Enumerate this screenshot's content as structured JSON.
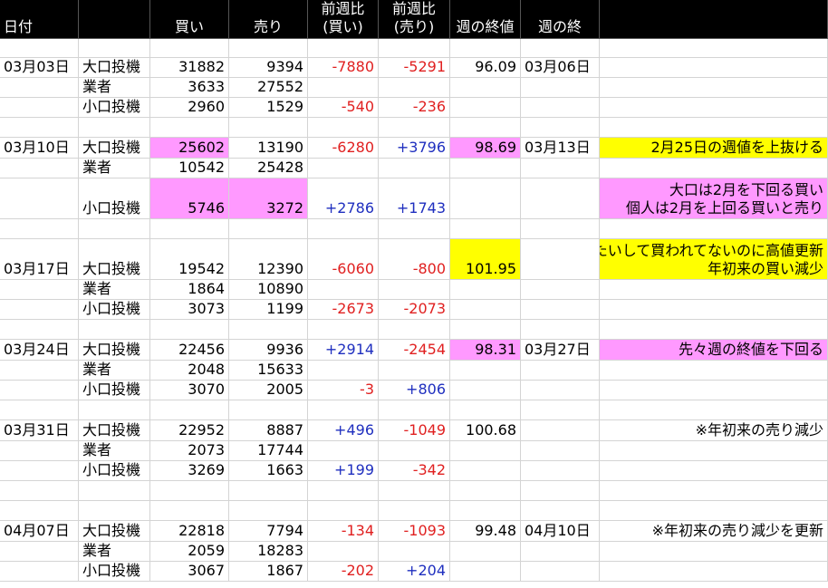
{
  "header": [
    "日付",
    "",
    "買い",
    "売り",
    "前週比\n(買い)",
    "前週比\n(売り)",
    "週の終値",
    "週の終",
    ""
  ],
  "column_colors": {
    "red": "#e02020",
    "blue": "#1f2fbf",
    "pink": "#ff99ff",
    "yellow": "#ffff00",
    "alert": "#ff3333"
  },
  "rows": [
    {
      "h": 21,
      "cells": []
    },
    {
      "h": 22,
      "cells": [
        {
          "c": 0,
          "t": "03月03日"
        },
        {
          "c": 1,
          "t": "大口投機"
        },
        {
          "c": 2,
          "t": "31882"
        },
        {
          "c": 3,
          "t": "9394"
        },
        {
          "c": 4,
          "t": "-7880",
          "fg": "red"
        },
        {
          "c": 5,
          "t": "-5291",
          "fg": "red"
        },
        {
          "c": 6,
          "t": "96.09"
        },
        {
          "c": 7,
          "t": "03月06日"
        }
      ]
    },
    {
      "h": 22,
      "cells": [
        {
          "c": 1,
          "t": "業者"
        },
        {
          "c": 2,
          "t": "3633"
        },
        {
          "c": 3,
          "t": "27552"
        }
      ]
    },
    {
      "h": 22,
      "cells": [
        {
          "c": 1,
          "t": "小口投機"
        },
        {
          "c": 2,
          "t": "2960"
        },
        {
          "c": 3,
          "t": "1529"
        },
        {
          "c": 4,
          "t": "-540",
          "fg": "red"
        },
        {
          "c": 5,
          "t": "-236",
          "fg": "red"
        }
      ]
    },
    {
      "h": 22,
      "cells": []
    },
    {
      "h": 23,
      "cells": [
        {
          "c": 0,
          "t": "03月10日"
        },
        {
          "c": 1,
          "t": "大口投機"
        },
        {
          "c": 2,
          "t": "25602",
          "bg": "pink"
        },
        {
          "c": 3,
          "t": "13190"
        },
        {
          "c": 4,
          "t": "-6280",
          "fg": "red"
        },
        {
          "c": 5,
          "t": "+3796",
          "fg": "blue"
        },
        {
          "c": 6,
          "t": "98.69",
          "bg": "pink"
        },
        {
          "c": 7,
          "t": "03月13日"
        },
        {
          "c": 8,
          "t": "2月25日の週値を上抜ける",
          "bg": "yellow"
        }
      ]
    },
    {
      "h": 22,
      "cells": [
        {
          "c": 1,
          "t": "業者"
        },
        {
          "c": 2,
          "t": "10542"
        },
        {
          "c": 3,
          "t": "25428"
        }
      ]
    },
    {
      "h": 45,
      "cells": [
        {
          "c": 1,
          "t": "小口投機"
        },
        {
          "c": 2,
          "t": "5746",
          "bg": "pink"
        },
        {
          "c": 3,
          "t": "3272",
          "bg": "pink"
        },
        {
          "c": 4,
          "t": "+2786",
          "fg": "blue"
        },
        {
          "c": 5,
          "t": "+1743",
          "fg": "blue"
        },
        {
          "c": 8,
          "t": "大口は2月を下回る買い\n個人は2月を上回る買いと売り",
          "bg": "pink"
        }
      ]
    },
    {
      "h": 22,
      "cells": []
    },
    {
      "h": 45,
      "cells": [
        {
          "c": 0,
          "t": "03月17日"
        },
        {
          "c": 1,
          "t": "大口投機"
        },
        {
          "c": 2,
          "t": "19542"
        },
        {
          "c": 3,
          "t": "12390"
        },
        {
          "c": 4,
          "t": "-6060",
          "fg": "red"
        },
        {
          "c": 5,
          "t": "-800",
          "fg": "red"
        },
        {
          "c": 6,
          "t": "101.95",
          "bg": "yellow"
        },
        {
          "c": 8,
          "t": "たいして買われてないのに高値更新\n年初来の買い減少",
          "bg": "yellow"
        }
      ]
    },
    {
      "h": 22,
      "cells": [
        {
          "c": 1,
          "t": "業者"
        },
        {
          "c": 2,
          "t": "1864"
        },
        {
          "c": 3,
          "t": "10890"
        }
      ]
    },
    {
      "h": 22,
      "cells": [
        {
          "c": 1,
          "t": "小口投機"
        },
        {
          "c": 2,
          "t": "3073"
        },
        {
          "c": 3,
          "t": "1199"
        },
        {
          "c": 4,
          "t": "-2673",
          "fg": "red"
        },
        {
          "c": 5,
          "t": "-2073",
          "fg": "red"
        }
      ]
    },
    {
      "h": 22,
      "cells": []
    },
    {
      "h": 23,
      "cells": [
        {
          "c": 0,
          "t": "03月24日"
        },
        {
          "c": 1,
          "t": "大口投機"
        },
        {
          "c": 2,
          "t": "22456"
        },
        {
          "c": 3,
          "t": "9936"
        },
        {
          "c": 4,
          "t": "+2914",
          "fg": "blue"
        },
        {
          "c": 5,
          "t": "-2454",
          "fg": "red"
        },
        {
          "c": 6,
          "t": "98.31",
          "bg": "pink"
        },
        {
          "c": 7,
          "t": "03月27日"
        },
        {
          "c": 8,
          "t": "先々週の終値を下回る",
          "bg": "pink"
        }
      ]
    },
    {
      "h": 22,
      "cells": [
        {
          "c": 1,
          "t": "業者"
        },
        {
          "c": 2,
          "t": "2048"
        },
        {
          "c": 3,
          "t": "15633"
        }
      ]
    },
    {
      "h": 22,
      "cells": [
        {
          "c": 1,
          "t": "小口投機"
        },
        {
          "c": 2,
          "t": "3070"
        },
        {
          "c": 3,
          "t": "2005"
        },
        {
          "c": 4,
          "t": "-3",
          "fg": "red"
        },
        {
          "c": 5,
          "t": "+806",
          "fg": "blue"
        }
      ]
    },
    {
      "h": 22,
      "cells": []
    },
    {
      "h": 23,
      "cells": [
        {
          "c": 0,
          "t": "03月31日"
        },
        {
          "c": 1,
          "t": "大口投機"
        },
        {
          "c": 2,
          "t": "22952"
        },
        {
          "c": 3,
          "t": "8887",
          "bg": "alert"
        },
        {
          "c": 4,
          "t": "+496",
          "fg": "blue"
        },
        {
          "c": 5,
          "t": "-1049",
          "fg": "red"
        },
        {
          "c": 6,
          "t": "100.68"
        },
        {
          "c": 8,
          "t": "※年初来の売り減少",
          "bg": "alert"
        }
      ]
    },
    {
      "h": 22,
      "cells": [
        {
          "c": 1,
          "t": "業者"
        },
        {
          "c": 2,
          "t": "2073"
        },
        {
          "c": 3,
          "t": "17744"
        }
      ]
    },
    {
      "h": 22,
      "cells": [
        {
          "c": 1,
          "t": "小口投機"
        },
        {
          "c": 2,
          "t": "3269"
        },
        {
          "c": 3,
          "t": "1663"
        },
        {
          "c": 4,
          "t": "+199",
          "fg": "blue"
        },
        {
          "c": 5,
          "t": "-342",
          "fg": "red"
        }
      ]
    },
    {
      "h": 22,
      "cells": []
    },
    {
      "h": 22,
      "cells": []
    },
    {
      "h": 23,
      "cells": [
        {
          "c": 0,
          "t": "04月07日"
        },
        {
          "c": 1,
          "t": "大口投機"
        },
        {
          "c": 2,
          "t": "22818"
        },
        {
          "c": 3,
          "t": "7794",
          "bg": "alert"
        },
        {
          "c": 4,
          "t": "-134",
          "fg": "red"
        },
        {
          "c": 5,
          "t": "-1093",
          "fg": "red"
        },
        {
          "c": 6,
          "t": "99.48"
        },
        {
          "c": 7,
          "t": "04月10日"
        },
        {
          "c": 8,
          "t": "※年初来の売り減少を更新",
          "bg": "alert"
        }
      ]
    },
    {
      "h": 22,
      "cells": [
        {
          "c": 1,
          "t": "業者"
        },
        {
          "c": 2,
          "t": "2059"
        },
        {
          "c": 3,
          "t": "18283"
        }
      ]
    },
    {
      "h": 22,
      "cells": [
        {
          "c": 1,
          "t": "小口投機"
        },
        {
          "c": 2,
          "t": "3067"
        },
        {
          "c": 3,
          "t": "1867"
        },
        {
          "c": 4,
          "t": "-202",
          "fg": "red"
        },
        {
          "c": 5,
          "t": "+204",
          "fg": "blue"
        }
      ]
    }
  ]
}
